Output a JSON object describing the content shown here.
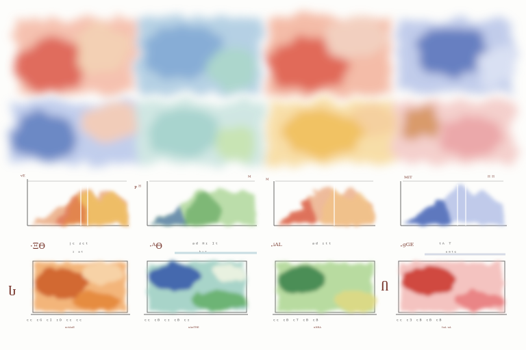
{
  "image_type": "watercolor abstract artwork of faux scientific charts",
  "palette": {
    "red": "#d63a2a",
    "orange": "#e07a28",
    "yellow": "#f0bb3a",
    "green": "#5aa957",
    "teal": "#69b4b0",
    "blue": "#3a5fb0",
    "navy": "#2a3f8a",
    "paper": "#fdfdfb"
  },
  "text": {
    "t1": "ᵛᴱ",
    "t2": "ᴘ ᴴ",
    "t3": "ᴹ",
    "t4": "ᴹᴵᵀ",
    "t5": "ᴴ ᴴ",
    "c1": "·ΞΘ",
    "c2": "ʲᶜ ᶻᶜᵗ",
    "c3": "ᶦ ᵃᵗ",
    "c4": "·ᴬΘ",
    "c5": "ᵃᵈ ᴴᶦ ᴵᵗ",
    "c6": "ᵇᵘᵗ",
    "c7": "·ⁱᴬᴸ",
    "c8": "ᵃᵈ ᶦᵗᵗ",
    "c9": "·ᴬᶜ",
    "c10": "ᵐᵃ ᵗᵉᶜ",
    "c11": "ᴴᵈᶜ",
    "c12": "·ᵍᴳᴱ",
    "c13": "ᵗᴬ ᵀ",
    "c14": "ᵉᵐᵗᵉ",
    "side1": "Ⴑ",
    "side2": "Ⴖ",
    "x1": "ᶜᶜ ᶜᴳ ᶜᴵ ᶦᴰ ᶜᶜ ᶜᶜ",
    "x2": "ᶜᶜ ᶜᴮ ᶜᶦ ᶜᴮ ᶜᶦ",
    "x3": "ᶜᶜ ᶜᴮ ᶜᵀ ᶜᴮ ᶜᴮ",
    "x4": "ᶜᶜ ᶜᴲ ᶜᴮ ᶜᴮ ᶜᴮ",
    "xs1": "ᵘᶜᵗᴬᵘᴱ",
    "xs2": "ᵘᴬᵘᵀᴿᴱ",
    "xs3": "ᵘᴵᵗᴿᴬ",
    "xs4": "ᴵᵘᴬ ᵘᴬ"
  }
}
